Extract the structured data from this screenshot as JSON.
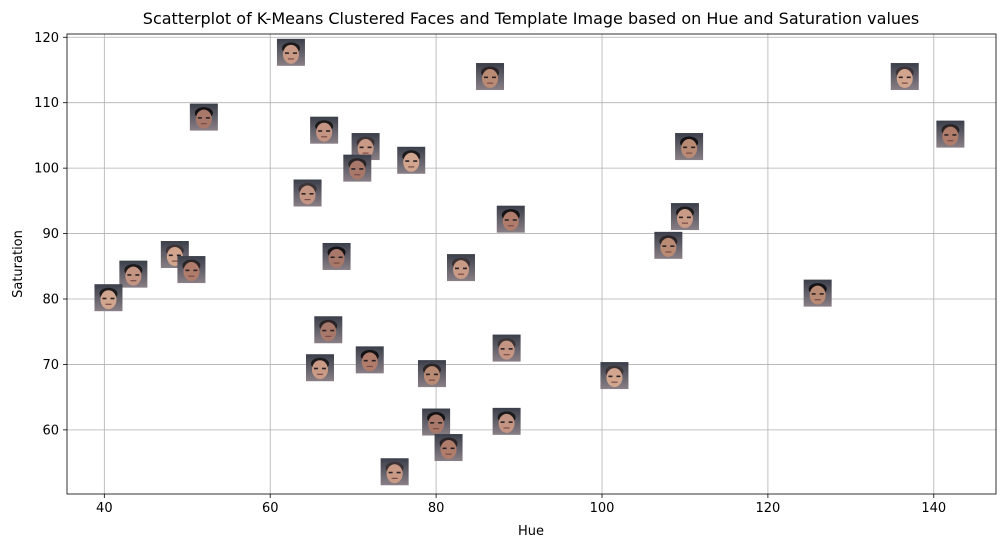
{
  "chart_data": {
    "type": "scatter",
    "title": "Scatterplot of K-Means Clustered Faces and Template Image based on Hue and Saturation values",
    "xlabel": "Hue",
    "ylabel": "Saturation",
    "xlim": [
      35.5,
      147.5
    ],
    "ylim": [
      50.2,
      120.5
    ],
    "xticks": [
      40,
      60,
      80,
      100,
      120,
      140
    ],
    "yticks": [
      60,
      70,
      80,
      90,
      100,
      110,
      120
    ],
    "grid": true,
    "marker": "face-thumbnail",
    "points": [
      {
        "x": 62.5,
        "y": 117.7
      },
      {
        "x": 86.5,
        "y": 114.0
      },
      {
        "x": 136.5,
        "y": 114.0
      },
      {
        "x": 52.0,
        "y": 107.8
      },
      {
        "x": 66.5,
        "y": 105.8
      },
      {
        "x": 142.0,
        "y": 105.2
      },
      {
        "x": 71.5,
        "y": 103.3
      },
      {
        "x": 110.5,
        "y": 103.3
      },
      {
        "x": 77.0,
        "y": 101.2
      },
      {
        "x": 70.5,
        "y": 100.0
      },
      {
        "x": 64.5,
        "y": 96.2
      },
      {
        "x": 89.0,
        "y": 92.2
      },
      {
        "x": 110.0,
        "y": 92.6
      },
      {
        "x": 108.0,
        "y": 88.2
      },
      {
        "x": 48.5,
        "y": 86.8
      },
      {
        "x": 68.0,
        "y": 86.5
      },
      {
        "x": 43.5,
        "y": 83.8
      },
      {
        "x": 50.5,
        "y": 84.5
      },
      {
        "x": 83.0,
        "y": 84.8
      },
      {
        "x": 126.0,
        "y": 80.9
      },
      {
        "x": 40.5,
        "y": 80.2
      },
      {
        "x": 67.0,
        "y": 75.3
      },
      {
        "x": 88.5,
        "y": 72.5
      },
      {
        "x": 72.0,
        "y": 70.7
      },
      {
        "x": 66.0,
        "y": 69.5
      },
      {
        "x": 79.5,
        "y": 68.6
      },
      {
        "x": 101.5,
        "y": 68.3
      },
      {
        "x": 80.0,
        "y": 61.2
      },
      {
        "x": 88.5,
        "y": 61.3
      },
      {
        "x": 81.5,
        "y": 57.3
      },
      {
        "x": 75.0,
        "y": 53.6
      }
    ]
  },
  "colors": {
    "grid": "#b0b0b0",
    "axis": "#000000",
    "background": "#ffffff"
  }
}
